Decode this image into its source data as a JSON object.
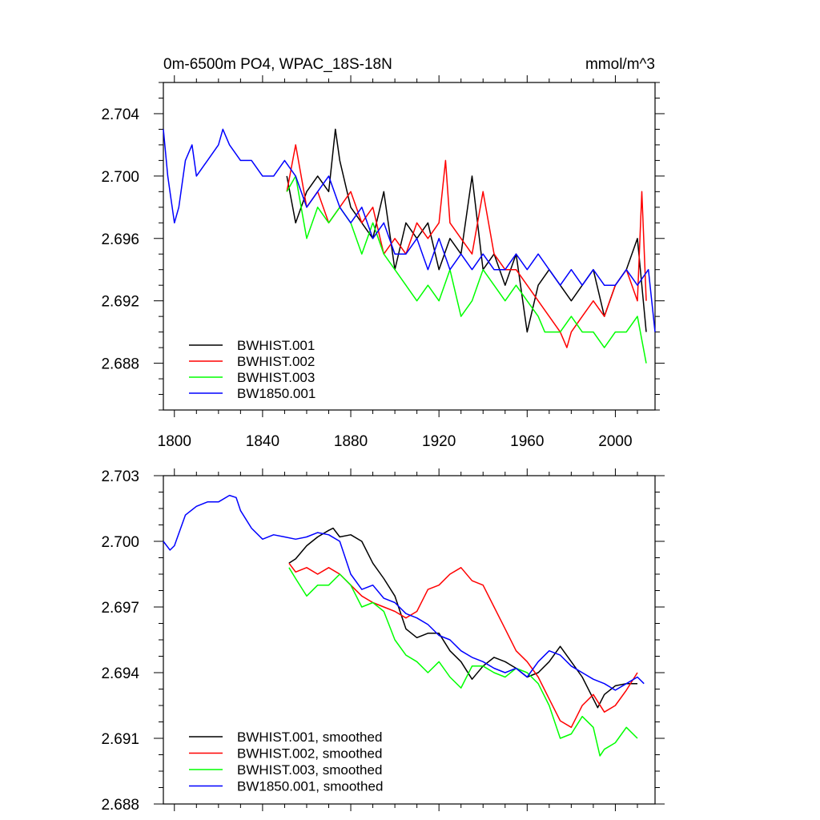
{
  "chart_data": [
    {
      "type": "line",
      "title": "0m-6500m PO4, WPAC_18S-18N",
      "units": "mmol/m^3",
      "xlim": [
        1795,
        2018
      ],
      "ylim": [
        2.685,
        2.706
      ],
      "xticks": [
        1800,
        1840,
        1880,
        1920,
        1960,
        2000
      ],
      "yticks": [
        2.688,
        2.692,
        2.696,
        2.7,
        2.704
      ],
      "ytick_labels": [
        "2.688",
        "2.692",
        "2.696",
        "2.700",
        "2.704"
      ],
      "legend_position": "bottom-left",
      "series": [
        {
          "name": "BWHIST.001",
          "color": "#000000",
          "x": [
            1851,
            1855,
            1860,
            1865,
            1870,
            1873,
            1875,
            1880,
            1885,
            1890,
            1895,
            1900,
            1905,
            1910,
            1915,
            1920,
            1925,
            1930,
            1935,
            1940,
            1945,
            1950,
            1955,
            1960,
            1965,
            1970,
            1975,
            1980,
            1985,
            1990,
            1995,
            2000,
            2005,
            2010,
            2014
          ],
          "y": [
            2.7,
            2.697,
            2.699,
            2.7,
            2.699,
            2.703,
            2.701,
            2.698,
            2.697,
            2.696,
            2.699,
            2.694,
            2.697,
            2.696,
            2.697,
            2.694,
            2.696,
            2.695,
            2.7,
            2.694,
            2.695,
            2.693,
            2.695,
            2.69,
            2.693,
            2.694,
            2.693,
            2.692,
            2.693,
            2.694,
            2.691,
            2.693,
            2.694,
            2.696,
            2.69
          ]
        },
        {
          "name": "BWHIST.002",
          "color": "#ff0000",
          "x": [
            1851,
            1855,
            1860,
            1865,
            1870,
            1875,
            1880,
            1885,
            1890,
            1895,
            1900,
            1905,
            1910,
            1915,
            1920,
            1923,
            1925,
            1930,
            1935,
            1940,
            1945,
            1950,
            1955,
            1960,
            1965,
            1970,
            1975,
            1978,
            1980,
            1985,
            1990,
            1995,
            2000,
            2005,
            2010,
            2012,
            2014
          ],
          "y": [
            2.699,
            2.702,
            2.698,
            2.699,
            2.697,
            2.698,
            2.699,
            2.697,
            2.698,
            2.695,
            2.696,
            2.695,
            2.697,
            2.696,
            2.697,
            2.701,
            2.697,
            2.696,
            2.695,
            2.699,
            2.695,
            2.694,
            2.694,
            2.693,
            2.692,
            2.691,
            2.69,
            2.689,
            2.69,
            2.691,
            2.692,
            2.691,
            2.693,
            2.694,
            2.692,
            2.699,
            2.692
          ]
        },
        {
          "name": "BWHIST.003",
          "color": "#00ff00",
          "x": [
            1851,
            1855,
            1860,
            1865,
            1870,
            1875,
            1880,
            1885,
            1890,
            1895,
            1900,
            1905,
            1910,
            1915,
            1920,
            1925,
            1930,
            1935,
            1940,
            1945,
            1950,
            1955,
            1960,
            1965,
            1968,
            1970,
            1975,
            1980,
            1985,
            1990,
            1995,
            2000,
            2005,
            2010,
            2014
          ],
          "y": [
            2.699,
            2.7,
            2.696,
            2.698,
            2.697,
            2.698,
            2.697,
            2.695,
            2.697,
            2.695,
            2.694,
            2.693,
            2.692,
            2.693,
            2.692,
            2.694,
            2.691,
            2.692,
            2.694,
            2.693,
            2.692,
            2.693,
            2.692,
            2.691,
            2.69,
            2.69,
            2.69,
            2.691,
            2.69,
            2.69,
            2.689,
            2.69,
            2.69,
            2.691,
            2.688
          ]
        },
        {
          "name": "BW1850.001",
          "color": "#0000ff",
          "x": [
            1795,
            1797,
            1800,
            1802,
            1805,
            1808,
            1810,
            1815,
            1820,
            1822,
            1825,
            1830,
            1835,
            1840,
            1845,
            1850,
            1855,
            1860,
            1865,
            1870,
            1875,
            1880,
            1885,
            1890,
            1895,
            1900,
            1905,
            1910,
            1915,
            1920,
            1925,
            1930,
            1935,
            1940,
            1945,
            1950,
            1955,
            1960,
            1965,
            1970,
            1975,
            1980,
            1985,
            1990,
            1995,
            2000,
            2005,
            2010,
            2015,
            2018
          ],
          "y": [
            2.703,
            2.7,
            2.697,
            2.698,
            2.701,
            2.702,
            2.7,
            2.701,
            2.702,
            2.703,
            2.702,
            2.701,
            2.701,
            2.7,
            2.7,
            2.701,
            2.7,
            2.698,
            2.699,
            2.7,
            2.698,
            2.697,
            2.698,
            2.696,
            2.697,
            2.695,
            2.695,
            2.696,
            2.694,
            2.696,
            2.694,
            2.695,
            2.694,
            2.695,
            2.694,
            2.694,
            2.695,
            2.694,
            2.695,
            2.694,
            2.693,
            2.694,
            2.693,
            2.694,
            2.693,
            2.693,
            2.694,
            2.693,
            2.694,
            2.69
          ]
        }
      ]
    },
    {
      "type": "line",
      "xlim": [
        1795,
        2018
      ],
      "ylim": [
        2.688,
        2.703
      ],
      "xticks": [
        1800,
        1840,
        1880,
        1920,
        1960,
        2000
      ],
      "yticks": [
        2.688,
        2.691,
        2.694,
        2.697,
        2.7,
        2.703
      ],
      "ytick_labels": [
        "2.688",
        "2.691",
        "2.694",
        "2.697",
        "2.700",
        "2.703"
      ],
      "legend_position": "bottom-left",
      "series": [
        {
          "name": "BWHIST.001, smoothed",
          "color": "#000000",
          "x": [
            1852,
            1855,
            1860,
            1865,
            1870,
            1872,
            1875,
            1880,
            1885,
            1890,
            1895,
            1900,
            1905,
            1910,
            1915,
            1920,
            1925,
            1930,
            1935,
            1940,
            1945,
            1950,
            1955,
            1960,
            1965,
            1970,
            1975,
            1980,
            1985,
            1990,
            1992,
            1995,
            2000,
            2005,
            2010
          ],
          "y": [
            2.699,
            2.6992,
            2.6998,
            2.7002,
            2.7005,
            2.7006,
            2.7002,
            2.7003,
            2.7,
            2.699,
            2.6983,
            2.6975,
            2.696,
            2.6956,
            2.6958,
            2.6958,
            2.695,
            2.6945,
            2.6937,
            2.6943,
            2.6947,
            2.6945,
            2.6942,
            2.6938,
            2.694,
            2.6945,
            2.6952,
            2.6945,
            2.6938,
            2.6928,
            2.6924,
            2.693,
            2.6934,
            2.6935,
            2.6935
          ]
        },
        {
          "name": "BWHIST.002, smoothed",
          "color": "#ff0000",
          "x": [
            1852,
            1855,
            1860,
            1865,
            1870,
            1875,
            1880,
            1885,
            1890,
            1895,
            1900,
            1905,
            1910,
            1915,
            1920,
            1925,
            1930,
            1935,
            1940,
            1945,
            1950,
            1955,
            1960,
            1965,
            1970,
            1975,
            1980,
            1985,
            1990,
            1995,
            2000,
            2005,
            2010
          ],
          "y": [
            2.699,
            2.6986,
            2.6988,
            2.6985,
            2.6988,
            2.6985,
            2.698,
            2.6975,
            2.6972,
            2.697,
            2.6968,
            2.6965,
            2.6968,
            2.6978,
            2.698,
            2.6985,
            2.6988,
            2.6982,
            2.698,
            2.697,
            2.696,
            2.695,
            2.6945,
            2.6938,
            2.6928,
            2.6918,
            2.6915,
            2.6925,
            2.693,
            2.6922,
            2.6925,
            2.6932,
            2.694
          ]
        },
        {
          "name": "BWHIST.003, smoothed",
          "color": "#00ff00",
          "x": [
            1852,
            1855,
            1860,
            1865,
            1870,
            1875,
            1880,
            1885,
            1890,
            1895,
            1900,
            1905,
            1910,
            1915,
            1920,
            1925,
            1930,
            1935,
            1940,
            1945,
            1950,
            1955,
            1960,
            1965,
            1970,
            1975,
            1980,
            1985,
            1990,
            1993,
            1995,
            2000,
            2005,
            2010
          ],
          "y": [
            2.6988,
            2.6983,
            2.6975,
            2.698,
            2.698,
            2.6985,
            2.698,
            2.697,
            2.6972,
            2.6968,
            2.6955,
            2.6948,
            2.6945,
            2.694,
            2.6945,
            2.6938,
            2.6933,
            2.6943,
            2.6943,
            2.694,
            2.6938,
            2.6942,
            2.694,
            2.6935,
            2.6925,
            2.691,
            2.6912,
            2.692,
            2.6915,
            2.6902,
            2.6905,
            2.6908,
            2.6915,
            2.691
          ]
        },
        {
          "name": "BW1850.001, smoothed",
          "color": "#0000ff",
          "x": [
            1795,
            1798,
            1800,
            1805,
            1810,
            1815,
            1820,
            1825,
            1828,
            1830,
            1835,
            1840,
            1845,
            1850,
            1855,
            1860,
            1865,
            1870,
            1875,
            1880,
            1885,
            1890,
            1895,
            1900,
            1905,
            1910,
            1915,
            1920,
            1925,
            1930,
            1935,
            1940,
            1945,
            1950,
            1955,
            1960,
            1965,
            1970,
            1975,
            1980,
            1985,
            1990,
            1995,
            2000,
            2005,
            2010,
            2013
          ],
          "y": [
            2.7,
            2.6996,
            2.6998,
            2.7012,
            2.7016,
            2.7018,
            2.7018,
            2.7021,
            2.702,
            2.7014,
            2.7006,
            2.7001,
            2.7003,
            2.7002,
            2.7001,
            2.7002,
            2.7004,
            2.7003,
            2.7,
            2.6985,
            2.6978,
            2.698,
            2.6974,
            2.6972,
            2.6967,
            2.6965,
            2.6962,
            2.6957,
            2.6955,
            2.695,
            2.6947,
            2.6945,
            2.6942,
            2.694,
            2.6942,
            2.6938,
            2.6945,
            2.695,
            2.6948,
            2.6943,
            2.694,
            2.6937,
            2.6935,
            2.6932,
            2.6935,
            2.6938,
            2.6935
          ]
        }
      ]
    }
  ]
}
